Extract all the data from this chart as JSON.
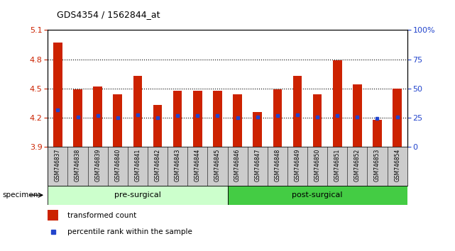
{
  "title": "GDS4354 / 1562844_at",
  "samples": [
    "GSM746837",
    "GSM746838",
    "GSM746839",
    "GSM746840",
    "GSM746841",
    "GSM746842",
    "GSM746843",
    "GSM746844",
    "GSM746845",
    "GSM746846",
    "GSM746847",
    "GSM746848",
    "GSM746849",
    "GSM746850",
    "GSM746851",
    "GSM746852",
    "GSM746853",
    "GSM746854"
  ],
  "bar_heights": [
    4.97,
    4.49,
    4.52,
    4.44,
    4.63,
    4.33,
    4.48,
    4.48,
    4.48,
    4.44,
    4.26,
    4.49,
    4.63,
    4.44,
    4.79,
    4.54,
    4.18,
    4.5
  ],
  "blue_markers": [
    4.28,
    4.21,
    4.22,
    4.2,
    4.23,
    4.2,
    4.22,
    4.22,
    4.22,
    4.2,
    4.21,
    4.22,
    4.23,
    4.21,
    4.22,
    4.21,
    4.19,
    4.21
  ],
  "bar_color": "#cc2200",
  "blue_color": "#2244cc",
  "ymin": 3.9,
  "ymax": 5.1,
  "yticks": [
    3.9,
    4.2,
    4.5,
    4.8,
    5.1
  ],
  "right_yticks_pct": [
    0,
    25,
    50,
    75,
    100
  ],
  "grid_yticks": [
    4.2,
    4.5,
    4.8
  ],
  "pre_surgical_count": 9,
  "post_surgical_count": 9,
  "pre_surgical_label": "pre-surgical",
  "post_surgical_label": "post-surgical",
  "pre_surgical_color": "#ccffcc",
  "post_surgical_color": "#44cc44",
  "xtick_bg_color": "#cccccc",
  "legend_red_label": "transformed count",
  "legend_blue_label": "percentile rank within the sample",
  "specimen_label": "specimen"
}
